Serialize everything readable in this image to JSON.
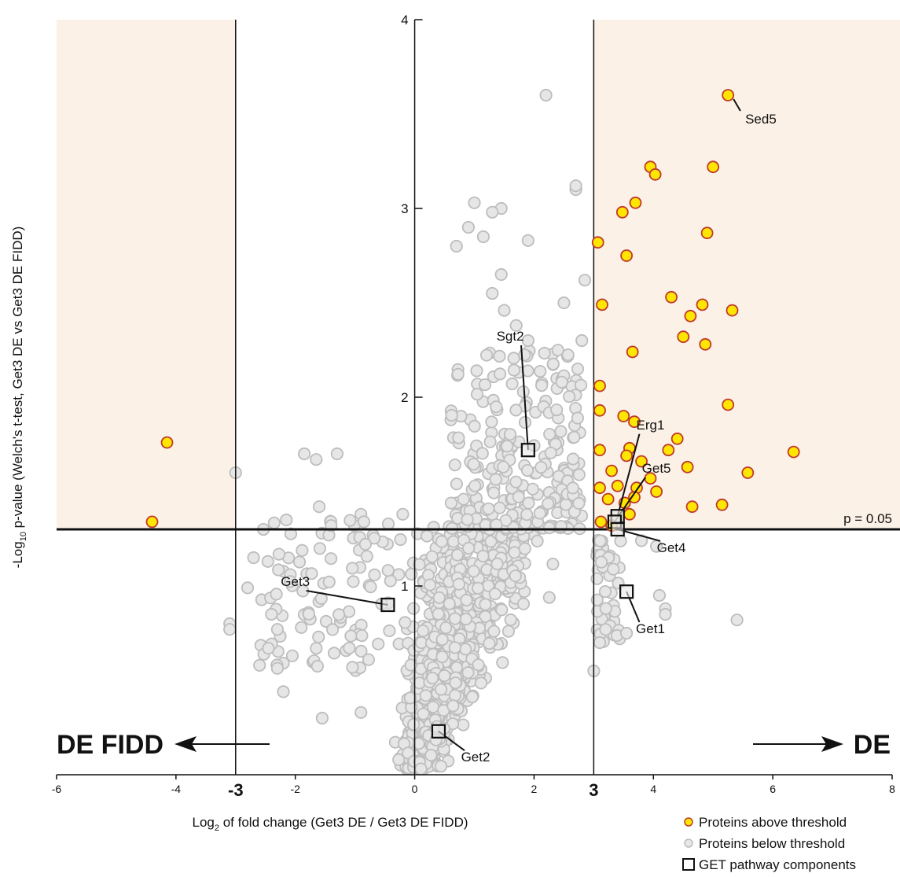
{
  "chart_data": {
    "type": "scatter",
    "title": "",
    "xlabel_prefix": "Log",
    "xlabel_sub": "2",
    "xlabel_rest": " of fold change (Get3 DE / Get3 DE FIDD)",
    "ylabel_prefix": "-Log",
    "ylabel_sub": "10",
    "ylabel_rest": " p-value (Welch's t-test, Get3 DE vs Get3 DE FIDD)",
    "xlim": [
      -6,
      8
    ],
    "ylim": [
      0,
      4
    ],
    "x_ticks": [
      -6,
      -4,
      -3,
      -2,
      0,
      2,
      3,
      4,
      6,
      8
    ],
    "x_tick_labels": [
      "-6",
      "-4",
      "-3",
      "-2",
      "0",
      "2",
      "3",
      "4",
      "6",
      "8"
    ],
    "x_tick_bold": [
      "-3",
      "3"
    ],
    "y_ticks": [
      1,
      2,
      3,
      4
    ],
    "y_tick_labels": [
      "1",
      "2",
      "3",
      "4"
    ],
    "fc_threshold_lines": [
      -3,
      3
    ],
    "pvalue_threshold": {
      "y": 1.3,
      "label": "p = 0.05"
    },
    "direction_labels": {
      "left": "DE FIDD",
      "right": "DE"
    },
    "colors": {
      "above_fill": "#ffe600",
      "above_stroke": "#c0392b",
      "below_fill": "#e6e6e6",
      "below_stroke": "#bdbdbd",
      "shade": "#fbf1e6",
      "line": "#111111"
    },
    "legend": {
      "position": "bottom-right",
      "entries": [
        {
          "label": "Proteins above threshold",
          "marker": "circle-yellow"
        },
        {
          "label": "Proteins below threshold",
          "marker": "circle-grey"
        },
        {
          "label": "GET pathway components",
          "marker": "square"
        }
      ]
    },
    "series": [
      {
        "name": "Proteins above threshold",
        "points": [
          [
            5.25,
            3.6
          ],
          [
            3.95,
            3.22
          ],
          [
            4.03,
            3.18
          ],
          [
            5.0,
            3.22
          ],
          [
            3.7,
            3.03
          ],
          [
            3.48,
            2.98
          ],
          [
            3.07,
            2.82
          ],
          [
            3.55,
            2.75
          ],
          [
            4.9,
            2.87
          ],
          [
            3.14,
            2.49
          ],
          [
            4.3,
            2.53
          ],
          [
            4.82,
            2.49
          ],
          [
            5.32,
            2.46
          ],
          [
            4.62,
            2.43
          ],
          [
            4.5,
            2.32
          ],
          [
            4.87,
            2.28
          ],
          [
            3.65,
            2.24
          ],
          [
            3.1,
            2.06
          ],
          [
            3.1,
            1.93
          ],
          [
            3.5,
            1.9
          ],
          [
            5.25,
            1.96
          ],
          [
            3.68,
            1.87
          ],
          [
            4.4,
            1.78
          ],
          [
            3.6,
            1.73
          ],
          [
            3.1,
            1.72
          ],
          [
            4.25,
            1.72
          ],
          [
            3.55,
            1.69
          ],
          [
            3.8,
            1.66
          ],
          [
            6.35,
            1.71
          ],
          [
            4.57,
            1.63
          ],
          [
            3.3,
            1.61
          ],
          [
            5.58,
            1.6
          ],
          [
            3.4,
            1.53
          ],
          [
            3.95,
            1.57
          ],
          [
            3.72,
            1.52
          ],
          [
            3.1,
            1.52
          ],
          [
            3.68,
            1.47
          ],
          [
            4.05,
            1.5
          ],
          [
            3.24,
            1.46
          ],
          [
            3.52,
            1.44
          ],
          [
            4.65,
            1.42
          ],
          [
            5.15,
            1.43
          ],
          [
            3.6,
            1.38
          ],
          [
            3.12,
            1.34
          ],
          [
            3.3,
            1.32
          ],
          [
            -4.15,
            1.76
          ],
          [
            -4.4,
            1.34
          ]
        ]
      },
      {
        "name": "GET pathway components",
        "points": [
          {
            "label": "Sgt2",
            "x": 1.9,
            "y": 1.72,
            "lx": 1.6,
            "ly": 2.3
          },
          {
            "label": "Erg1",
            "x": 3.4,
            "y": 1.37,
            "lx": 3.95,
            "ly": 1.83
          },
          {
            "label": "Get5",
            "x": 3.35,
            "y": 1.34,
            "lx": 4.05,
            "ly": 1.6
          },
          {
            "label": "Get4",
            "x": 3.4,
            "y": 1.3,
            "lx": 4.3,
            "ly": 1.18
          },
          {
            "label": "Get3",
            "x": -0.45,
            "y": 0.9,
            "lx": -2.0,
            "ly": 1.0
          },
          {
            "label": "Get1",
            "x": 3.55,
            "y": 0.97,
            "lx": 3.95,
            "ly": 0.75
          },
          {
            "label": "Get2",
            "x": 0.4,
            "y": 0.23,
            "lx": 1.02,
            "ly": 0.07
          }
        ]
      }
    ],
    "annotations": [
      {
        "label": "Sed5",
        "x": 5.25,
        "y": 3.6,
        "lx": 5.8,
        "ly": 3.45
      }
    ]
  }
}
